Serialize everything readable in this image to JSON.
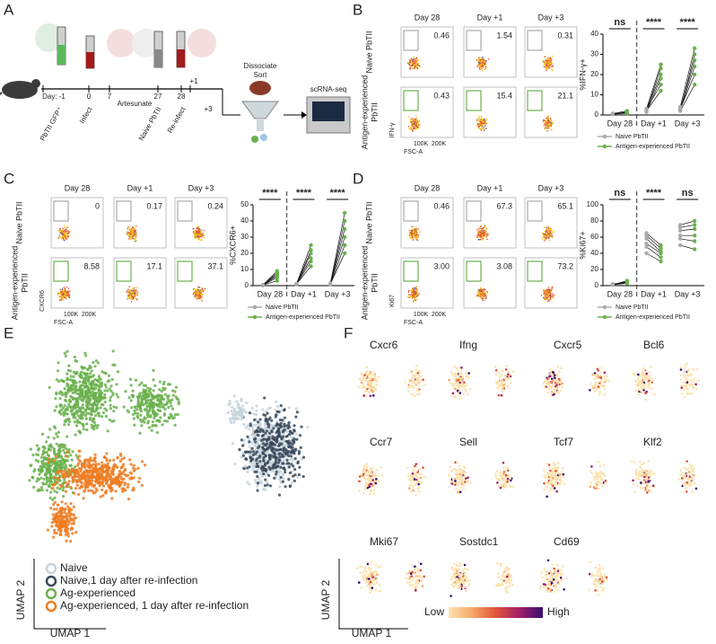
{
  "figure": {
    "panel_labels": [
      "A",
      "B",
      "C",
      "D",
      "E",
      "F"
    ],
    "schematic": {
      "timeline": [
        "Day: -1",
        "0",
        "7",
        "27",
        "28",
        "+1",
        "+3"
      ],
      "events": [
        "PbTII GFP⁺",
        "Infect",
        "Artesunate",
        "Naive PbTII",
        "Re-infect"
      ],
      "process": [
        "Dissociate",
        "Sort"
      ],
      "output": "scRNA-seq"
    },
    "flow": [
      {
        "days": [
          "Day 28",
          "Day +1",
          "Day +3"
        ],
        "rows": [
          [
            "Naive PbTII"
          ],
          [
            "Antigen-experienced",
            "PbTII"
          ]
        ],
        "gates": [
          [
            "0.46",
            "1.54",
            "0.31"
          ],
          [
            "0.43",
            "15.4",
            "21.1"
          ]
        ],
        "ylabel": "IFN-γ",
        "xlabel": "FSC-A",
        "xticks": [
          "100K",
          "200K"
        ]
      },
      {
        "days": [
          "Day 28",
          "Day +1",
          "Day +3"
        ],
        "rows": [
          [
            "Naive PbTII"
          ],
          [
            "Antigen-experienced",
            "PbTII"
          ]
        ],
        "gates": [
          [
            "0",
            "0.17",
            "0.24"
          ],
          [
            "8.58",
            "17.1",
            "37.1"
          ]
        ],
        "ylabel": "CXCR6",
        "xlabel": "FSC-A",
        "xticks": [
          "100K",
          "200K"
        ]
      },
      {
        "days": [
          "Day 28",
          "Day +1",
          "Day +3"
        ],
        "rows": [
          [
            "Naive PbTII"
          ],
          [
            "Antigen-experienced",
            "PbTII"
          ]
        ],
        "gates": [
          [
            "0.46",
            "67.3",
            "65.1"
          ],
          [
            "3.00",
            "3.08",
            "73.2"
          ]
        ],
        "ylabel": "Ki67",
        "xlabel": "FSC-A",
        "xticks": [
          "100K",
          "200K"
        ]
      }
    ],
    "umap": {
      "legend": [
        {
          "name": "Naive",
          "color": "#c5d3dc"
        },
        {
          "name": "Naive,1 day after re-infection",
          "color": "#3a4a5c"
        },
        {
          "name": "Ag-experienced",
          "color": "#6ab04c"
        },
        {
          "name": "Ag-experienced, 1 day after re-infection",
          "color": "#ee7d22"
        }
      ],
      "xlabel": "UMAP 1",
      "ylabel": "UMAP 2"
    },
    "features": {
      "genes": [
        "Cxcr6",
        "Ifng",
        "Cxcr5",
        "Bcl6",
        "Ccr7",
        "Sell",
        "Tcf7",
        "Klf2",
        "Mki67",
        "Sostdc1",
        "Cd69"
      ],
      "low": "Low",
      "high": "High",
      "xlabel": "UMAP 1",
      "ylabel": "UMAP 2"
    }
  },
  "chart_data": [
    {
      "type": "paired-dot",
      "ylabel": "%IFN-γ+",
      "categories": [
        "Day 28",
        "Day +1",
        "Day +3"
      ],
      "ylim": [
        0,
        40
      ],
      "yticks": [
        0,
        10,
        20,
        30,
        40
      ],
      "stats": [
        "ns",
        "****",
        "****"
      ],
      "series": [
        {
          "name": "Naive PbTII",
          "color": "#aaaaaa",
          "values": [
            [
              0.5,
              0.4,
              0.6,
              0.5,
              0.3,
              0.7
            ],
            [
              2,
              3,
              1.5,
              2.5,
              2,
              3
            ],
            [
              2,
              3,
              2.5,
              3,
              2,
              4
            ]
          ]
        },
        {
          "name": "Antigen-experienced PbTII",
          "color": "#6ab04c",
          "values": [
            [
              1,
              1.5,
              0.8,
              1.2,
              1,
              2
            ],
            [
              12,
              15,
              18,
              20,
              23,
              25
            ],
            [
              15,
              20,
              24,
              27,
              30,
              33
            ]
          ]
        }
      ]
    },
    {
      "type": "paired-dot",
      "ylabel": "%CXCR6+",
      "categories": [
        "Day 28",
        "Day +1",
        "Day +3"
      ],
      "ylim": [
        0,
        50
      ],
      "yticks": [
        0,
        10,
        20,
        30,
        40,
        50
      ],
      "stats": [
        "****",
        "****",
        "****"
      ],
      "series": [
        {
          "name": "Naive PbTII",
          "color": "#aaaaaa",
          "values": [
            [
              0.3,
              0.2,
              0.4,
              0.3,
              0.2,
              0.3
            ],
            [
              1,
              0.8,
              1.2,
              1,
              0.6,
              1.1
            ],
            [
              1,
              0.8,
              1.2,
              1,
              0.7,
              1.3
            ]
          ]
        },
        {
          "name": "Antigen-experienced PbTII",
          "color": "#6ab04c",
          "values": [
            [
              3,
              5,
              6,
              7,
              8,
              9
            ],
            [
              12,
              15,
              17,
              20,
              22,
              25
            ],
            [
              20,
              25,
              30,
              35,
              40,
              45
            ]
          ]
        }
      ]
    },
    {
      "type": "paired-dot",
      "ylabel": "%Ki67+",
      "categories": [
        "Day 28",
        "Day +1",
        "Day +3"
      ],
      "ylim": [
        0,
        100
      ],
      "yticks": [
        0,
        20,
        40,
        60,
        80,
        100
      ],
      "stats": [
        "ns",
        "****",
        "ns"
      ],
      "series": [
        {
          "name": "Naive PbTII",
          "color": "#aaaaaa",
          "values": [
            [
              1,
              2,
              1,
              1.5,
              2,
              1
            ],
            [
              40,
              48,
              52,
              58,
              62,
              65
            ],
            [
              50,
              58,
              62,
              68,
              72,
              75
            ]
          ]
        },
        {
          "name": "Antigen-experienced PbTII",
          "color": "#6ab04c",
          "values": [
            [
              3,
              4,
              5,
              4,
              3,
              6
            ],
            [
              30,
              35,
              40,
              42,
              46,
              50
            ],
            [
              45,
              55,
              62,
              70,
              75,
              80
            ]
          ]
        }
      ]
    }
  ]
}
